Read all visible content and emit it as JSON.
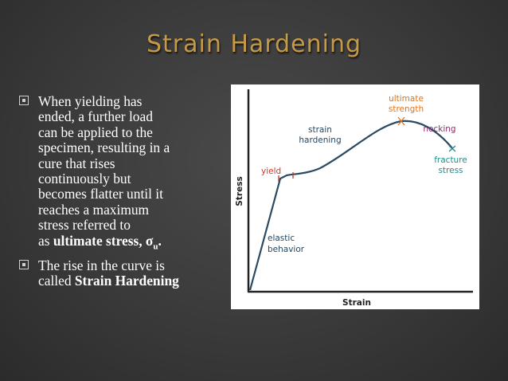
{
  "slide": {
    "title": "Strain Hardening"
  },
  "bullets": {
    "b1": {
      "line1": "When yielding has",
      "line2": "ended, a further load",
      "line3": "can be applied to the",
      "line4": "specimen, resulting in a",
      "line5": "cure that rises",
      "line6": "continuously but",
      "line7": "becomes flatter until it",
      "line8": "reaches a maximum",
      "line9": "stress referred to",
      "line10_prefix": "as ",
      "line10_bold": "ultimate stress, σ",
      "line10_sub": "u",
      "line10_suffix": "."
    },
    "b2": {
      "line1": "The rise in the curve is",
      "line2_prefix": "called ",
      "line2_bold": "Strain Hardening"
    }
  },
  "chart_data": {
    "type": "line",
    "xlabel": "Strain",
    "ylabel": "Stress",
    "annotations": {
      "ultimate_1": "ultimate",
      "ultimate_2": "strength",
      "strain_hardening_1": "strain",
      "strain_hardening_2": "hardening",
      "necking": "necking",
      "fracture_1": "fracture",
      "fracture_2": "stress",
      "yield": "yield",
      "elastic_1": "elastic",
      "elastic_2": "behavior"
    },
    "colors": {
      "curve": "#2a4a63",
      "axes": "#222222",
      "yield": "#c43a2b",
      "ultimate": "#e0741e",
      "necking": "#8a2b6e",
      "fracture": "#228c86",
      "labels": "#27465e"
    }
  }
}
